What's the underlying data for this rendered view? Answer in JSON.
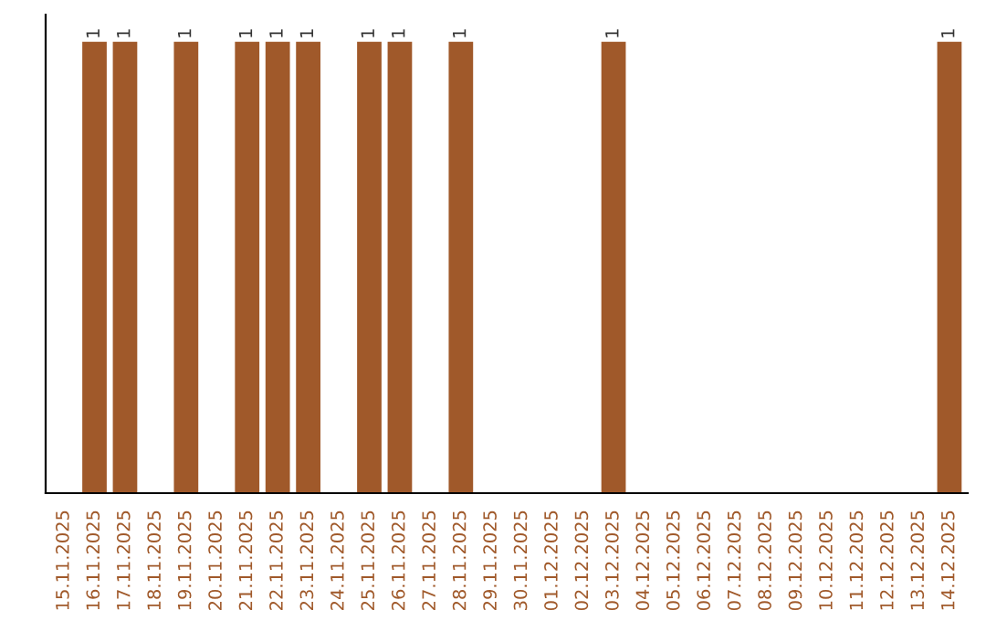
{
  "chart_data": {
    "type": "bar",
    "categories": [
      "15.11.2025",
      "16.11.2025",
      "17.11.2025",
      "18.11.2025",
      "19.11.2025",
      "20.11.2025",
      "21.11.2025",
      "22.11.2025",
      "23.11.2025",
      "24.11.2025",
      "25.11.2025",
      "26.11.2025",
      "27.11.2025",
      "28.11.2025",
      "29.11.2025",
      "30.11.2025",
      "01.12.2025",
      "02.12.2025",
      "03.12.2025",
      "04.12.2025",
      "05.12.2025",
      "06.12.2025",
      "07.12.2025",
      "08.12.2025",
      "09.12.2025",
      "10.12.2025",
      "11.12.2025",
      "12.12.2025",
      "13.12.2025",
      "14.12.2025"
    ],
    "values": [
      null,
      1,
      1,
      null,
      1,
      null,
      1,
      1,
      1,
      null,
      1,
      1,
      null,
      1,
      null,
      null,
      null,
      null,
      1,
      null,
      null,
      null,
      null,
      null,
      null,
      null,
      null,
      null,
      null,
      1
    ],
    "value_labels": [
      null,
      "1",
      "1",
      null,
      "1",
      null,
      "1",
      "1",
      "1",
      null,
      "1",
      "1",
      null,
      "1",
      null,
      null,
      null,
      null,
      "1",
      null,
      null,
      null,
      null,
      null,
      null,
      null,
      null,
      null,
      null,
      "1"
    ],
    "color": "#a0592a",
    "tick_labels": "x",
    "grid": false,
    "legend": false
  }
}
